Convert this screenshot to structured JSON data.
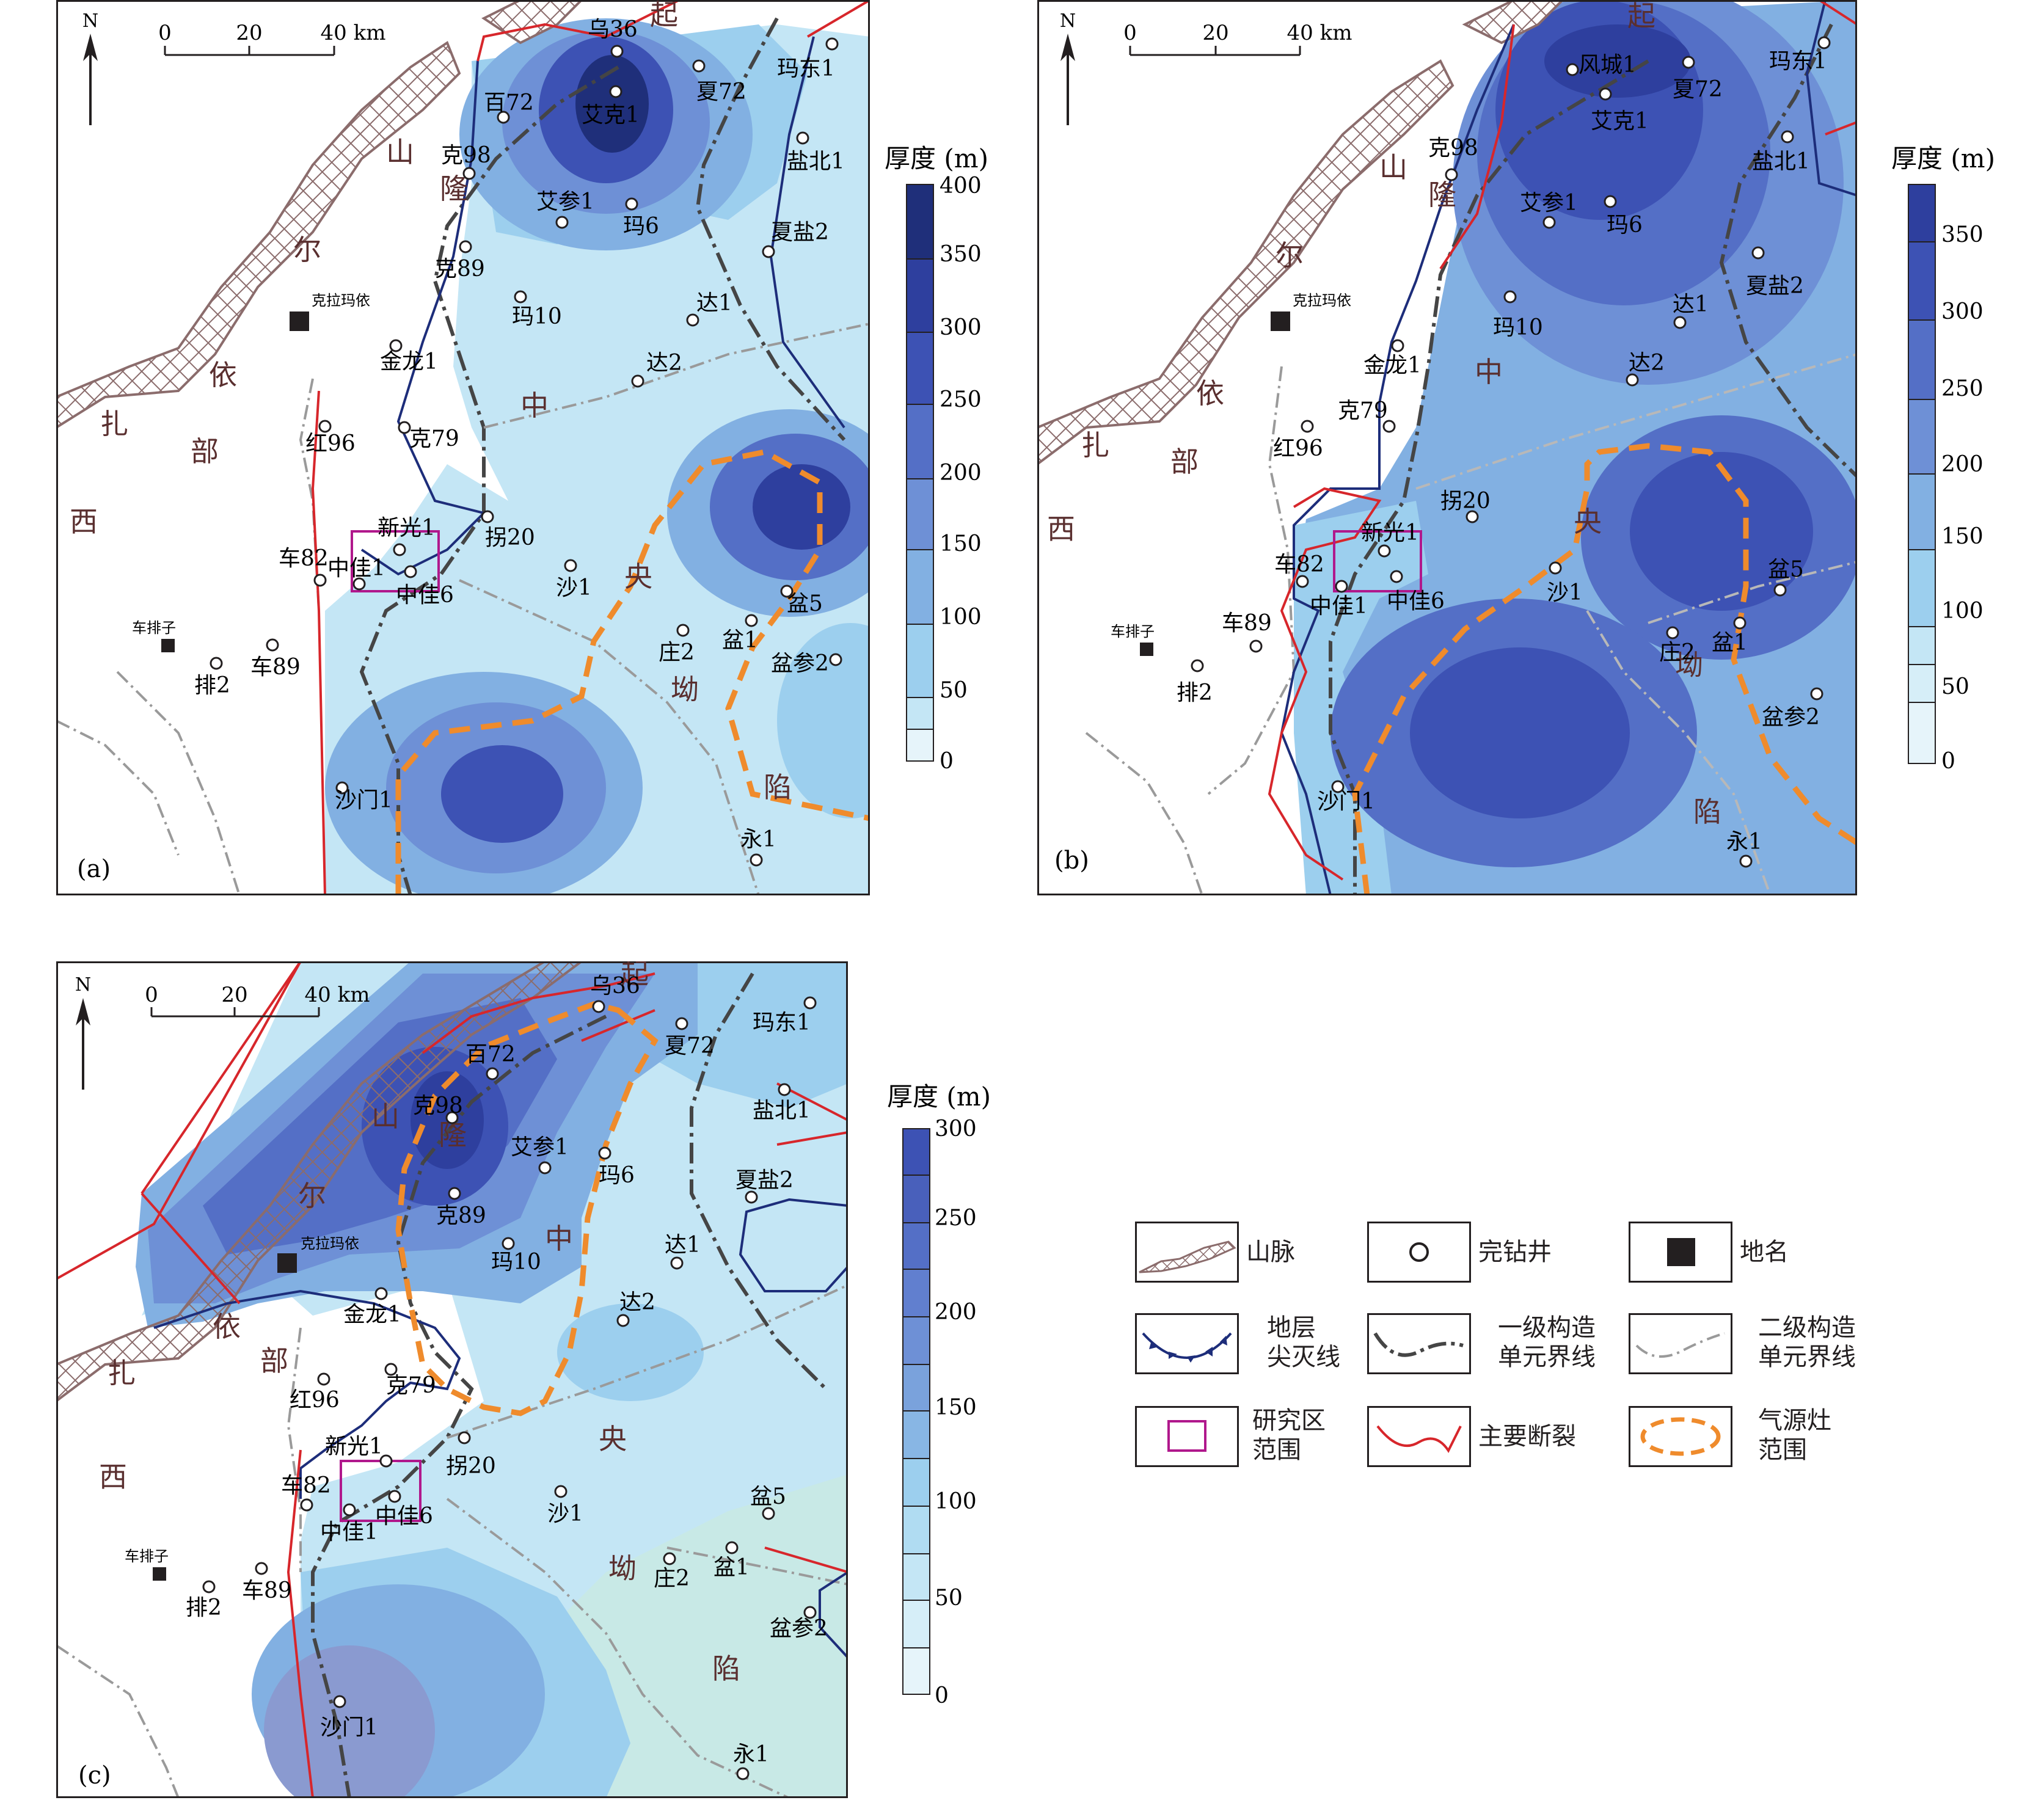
{
  "colors": {
    "c0": "#e6f4fa",
    "c50": "#c4e6f5",
    "c100": "#9ccfee",
    "c150": "#82b0e2",
    "c200": "#6e90d6",
    "c250": "#546fc6",
    "c300": "#3d52b4",
    "c350": "#2e3f9e",
    "c400": "#1f2f7a",
    "fault": "#d7262b",
    "boundary": "#454545",
    "pinchout": "#1d2d7a",
    "gas": "#ef8b2c",
    "mountain": "#8b6c6c",
    "box": "#b0188c"
  },
  "maps": [
    {
      "id": "a",
      "panel_label": "(a)",
      "north": "N",
      "scale_ticks": [
        "0",
        "20",
        "40 km"
      ],
      "colorbar_title": "厚度 (m)",
      "colorbar_ticks": [
        "0",
        "50",
        "100",
        "150",
        "200",
        "250",
        "300",
        "350",
        "400"
      ],
      "region_labels": [
        "西",
        "扎",
        "部",
        "依",
        "尔",
        "隆",
        "山",
        "起",
        "中",
        "央",
        "坳",
        "陷"
      ],
      "place_names": [
        "克拉玛依",
        "车排子"
      ],
      "wells": [
        "乌36",
        "夏72",
        "玛东1",
        "百72",
        "艾克1",
        "克98",
        "盐北1",
        "艾参1",
        "玛6",
        "夏盐2",
        "克89",
        "玛10",
        "达1",
        "达2",
        "金龙1",
        "红96",
        "克79",
        "拐20",
        "新光1",
        "车82",
        "中佳1",
        "中佳6",
        "沙1",
        "盆5",
        "盆1",
        "车89",
        "庄2",
        "排2",
        "盆参2",
        "沙门1",
        "永1"
      ]
    },
    {
      "id": "b",
      "panel_label": "(b)",
      "north": "N",
      "scale_ticks": [
        "0",
        "20",
        "40 km"
      ],
      "colorbar_title": "厚度 (m)",
      "colorbar_ticks": [
        "0",
        "50",
        "100",
        "150",
        "200",
        "250",
        "300",
        "350"
      ],
      "region_labels": [
        "西",
        "扎",
        "部",
        "依",
        "尔",
        "隆",
        "山",
        "起",
        "中",
        "央",
        "坳",
        "陷"
      ],
      "place_names": [
        "克拉玛依",
        "车排子"
      ],
      "wells": [
        "风城1",
        "夏72",
        "玛东1",
        "艾克1",
        "克98",
        "盐北1",
        "艾参1",
        "玛6",
        "夏盐2",
        "玛10",
        "达1",
        "金龙1",
        "达2",
        "克79",
        "红96",
        "拐20",
        "新光1",
        "车82",
        "中佳1",
        "中佳6",
        "沙1",
        "盆5",
        "车89",
        "庄2",
        "盆1",
        "排2",
        "盆参2",
        "沙门1",
        "永1"
      ]
    },
    {
      "id": "c",
      "panel_label": "(c)",
      "north": "N",
      "scale_ticks": [
        "0",
        "20",
        "40 km"
      ],
      "colorbar_title": "厚度 (m)",
      "colorbar_ticks": [
        "0",
        "50",
        "100",
        "150",
        "200",
        "250",
        "300"
      ],
      "region_labels": [
        "西",
        "扎",
        "部",
        "依",
        "尔",
        "隆",
        "山",
        "起",
        "中",
        "央",
        "坳",
        "陷"
      ],
      "place_names": [
        "克拉玛依",
        "车排子"
      ],
      "wells": [
        "乌36",
        "夏72",
        "玛东1",
        "百72",
        "克98",
        "盐北1",
        "艾参1",
        "玛6",
        "夏盐2",
        "克89",
        "玛10",
        "达1",
        "金龙1",
        "达2",
        "红96",
        "克79",
        "拐20",
        "新光1",
        "车82",
        "中佳1",
        "中佳6",
        "沙1",
        "盆5",
        "盆1",
        "庄2",
        "车89",
        "排2",
        "盆参2",
        "沙门1",
        "永1"
      ]
    }
  ],
  "legend": [
    {
      "icon": "mountain-icon",
      "label": "山脉"
    },
    {
      "icon": "well-icon",
      "label": "完钻井"
    },
    {
      "icon": "place-icon",
      "label": "地名"
    },
    {
      "icon": "pinchout-icon",
      "label": "地层\n尖灭线"
    },
    {
      "icon": "primary-boundary-icon",
      "label": "一级构造\n单元界线"
    },
    {
      "icon": "secondary-boundary-icon",
      "label": "二级构造\n单元界线"
    },
    {
      "icon": "study-area-icon",
      "label": "研究区\n范围"
    },
    {
      "icon": "fault-icon",
      "label": "主要断裂"
    },
    {
      "icon": "gas-source-icon",
      "label": "气源灶\n范围"
    }
  ]
}
